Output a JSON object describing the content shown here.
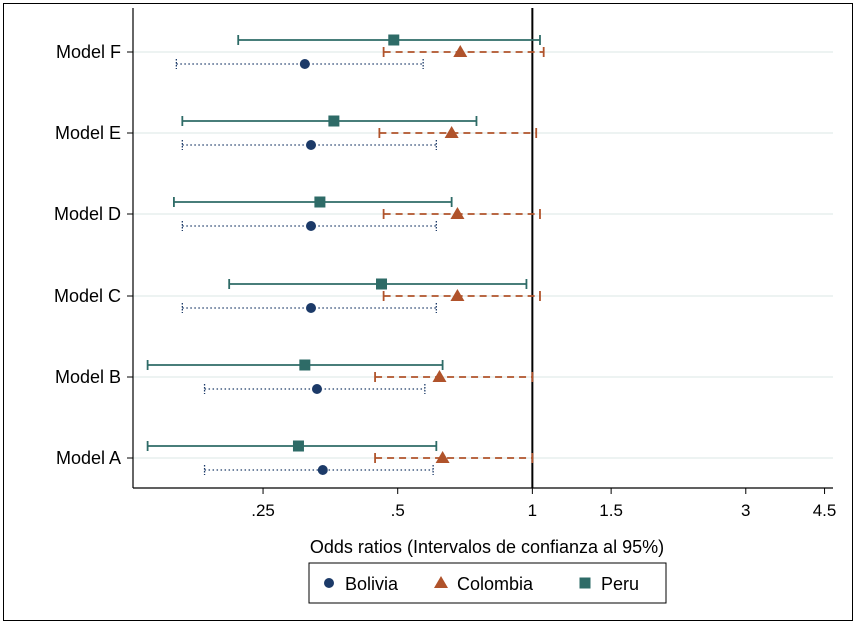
{
  "chart_data": {
    "type": "forest",
    "xlabel": "Odds ratios (Intervalos de confianza al 95%)",
    "x_scale": "log",
    "xlim": [
      0.128,
      4.7
    ],
    "x_ticks": [
      {
        "value": 0.25,
        "label": ".25"
      },
      {
        "value": 0.5,
        "label": ".5"
      },
      {
        "value": 1,
        "label": "1"
      },
      {
        "value": 1.5,
        "label": "1.5"
      },
      {
        "value": 3,
        "label": "3"
      },
      {
        "value": 4.5,
        "label": "4.5"
      }
    ],
    "reference_line": 1,
    "categories": [
      "Model F",
      "Model E",
      "Model D",
      "Model C",
      "Model B",
      "Model A"
    ],
    "legend_position": "bottom",
    "series": [
      {
        "name": "Peru",
        "marker": "square",
        "color": "#2e6b67",
        "line": "solid",
        "points": [
          {
            "model": "Model F",
            "or": 0.49,
            "lo": 0.22,
            "hi": 1.04
          },
          {
            "model": "Model E",
            "or": 0.36,
            "lo": 0.165,
            "hi": 0.75
          },
          {
            "model": "Model D",
            "or": 0.335,
            "lo": 0.158,
            "hi": 0.66
          },
          {
            "model": "Model C",
            "or": 0.46,
            "lo": 0.21,
            "hi": 0.97
          },
          {
            "model": "Model B",
            "or": 0.31,
            "lo": 0.138,
            "hi": 0.63
          },
          {
            "model": "Model A",
            "or": 0.3,
            "lo": 0.138,
            "hi": 0.61
          }
        ]
      },
      {
        "name": "Colombia",
        "marker": "triangle",
        "color": "#b0532b",
        "line": "dashed",
        "points": [
          {
            "model": "Model F",
            "or": 0.69,
            "lo": 0.465,
            "hi": 1.06
          },
          {
            "model": "Model E",
            "or": 0.66,
            "lo": 0.455,
            "hi": 1.02
          },
          {
            "model": "Model D",
            "or": 0.68,
            "lo": 0.465,
            "hi": 1.04
          },
          {
            "model": "Model C",
            "or": 0.68,
            "lo": 0.465,
            "hi": 1.04
          },
          {
            "model": "Model B",
            "or": 0.62,
            "lo": 0.445,
            "hi": 1.0
          },
          {
            "model": "Model A",
            "or": 0.63,
            "lo": 0.445,
            "hi": 1.0
          }
        ]
      },
      {
        "name": "Bolivia",
        "marker": "circle",
        "color": "#1c3a68",
        "line": "dotted",
        "points": [
          {
            "model": "Model F",
            "or": 0.31,
            "lo": 0.16,
            "hi": 0.57
          },
          {
            "model": "Model E",
            "or": 0.32,
            "lo": 0.165,
            "hi": 0.61
          },
          {
            "model": "Model D",
            "or": 0.32,
            "lo": 0.165,
            "hi": 0.61
          },
          {
            "model": "Model C",
            "or": 0.32,
            "lo": 0.165,
            "hi": 0.61
          },
          {
            "model": "Model B",
            "or": 0.33,
            "lo": 0.185,
            "hi": 0.575
          },
          {
            "model": "Model A",
            "or": 0.34,
            "lo": 0.185,
            "hi": 0.6
          }
        ]
      }
    ],
    "legend": [
      {
        "name": "Bolivia",
        "marker": "circle",
        "color": "#1c3a68"
      },
      {
        "name": "Colombia",
        "marker": "triangle",
        "color": "#b0532b"
      },
      {
        "name": "Peru",
        "marker": "square",
        "color": "#2e6b67"
      }
    ]
  }
}
